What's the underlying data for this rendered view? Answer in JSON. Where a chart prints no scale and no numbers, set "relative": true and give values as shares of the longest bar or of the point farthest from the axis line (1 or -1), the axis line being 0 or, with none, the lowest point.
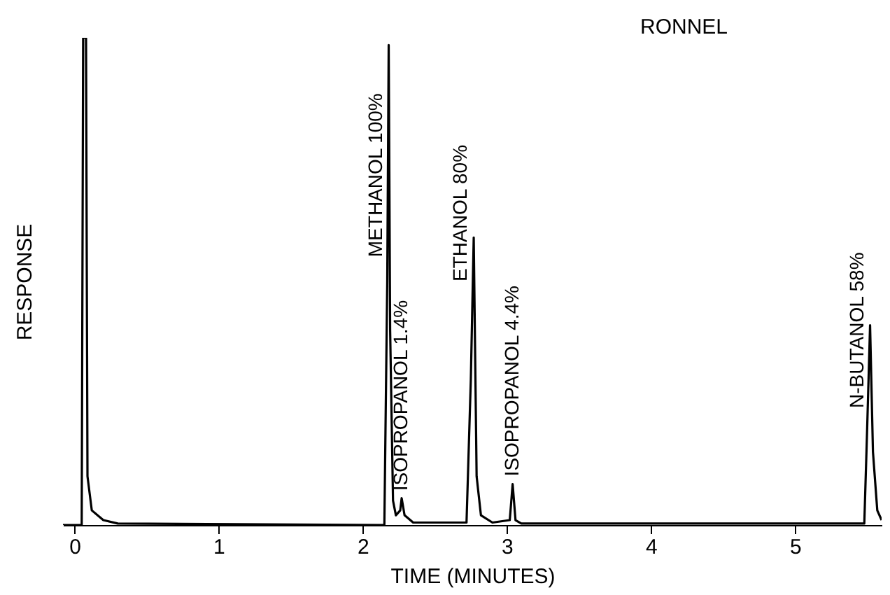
{
  "chart_data": {
    "type": "line",
    "title": "RONNEL",
    "xlabel": "TIME (MINUTES)",
    "ylabel": "RESPONSE",
    "relative": true,
    "xlim": [
      -0.08,
      5.6
    ],
    "xticks": [
      0,
      1,
      2,
      3,
      4,
      5
    ],
    "series": [
      {
        "color": "#000000",
        "x": [
          -0.08,
          0.05,
          0.06,
          0.08,
          0.09,
          0.12,
          0.2,
          0.3,
          2.15,
          2.17,
          2.18,
          2.19,
          2.21,
          2.23,
          2.26,
          2.27,
          2.29,
          2.35,
          2.72,
          2.75,
          2.77,
          2.79,
          2.82,
          2.9,
          3.02,
          3.04,
          3.06,
          3.1,
          5.48,
          5.5,
          5.52,
          5.54,
          5.57,
          5.6
        ],
        "values": [
          0,
          0,
          1,
          1,
          0.1,
          0.03,
          0.01,
          0.003,
          0,
          0.5,
          0.985,
          0.4,
          0.05,
          0.02,
          0.03,
          0.055,
          0.02,
          0.005,
          0.005,
          0.3,
          0.59,
          0.1,
          0.02,
          0.005,
          0.01,
          0.084,
          0.01,
          0.003,
          0.003,
          0.2,
          0.41,
          0.15,
          0.03,
          0.01
        ]
      }
    ],
    "annotations": [
      {
        "text": "METHANOL 100%",
        "x": 2.18,
        "y": 0.55
      },
      {
        "text": "ISOPROPANOL 1.4%",
        "x": 2.27,
        "y": 0.07
      },
      {
        "text": "ETHANOL 80%",
        "x": 2.77,
        "y": 0.5
      },
      {
        "text": "ISOPROPANOL 4.4%",
        "x": 3.04,
        "y": 0.1
      },
      {
        "text": "N-BUTANOL 58%",
        "x": 5.52,
        "y": 0.24
      }
    ]
  }
}
